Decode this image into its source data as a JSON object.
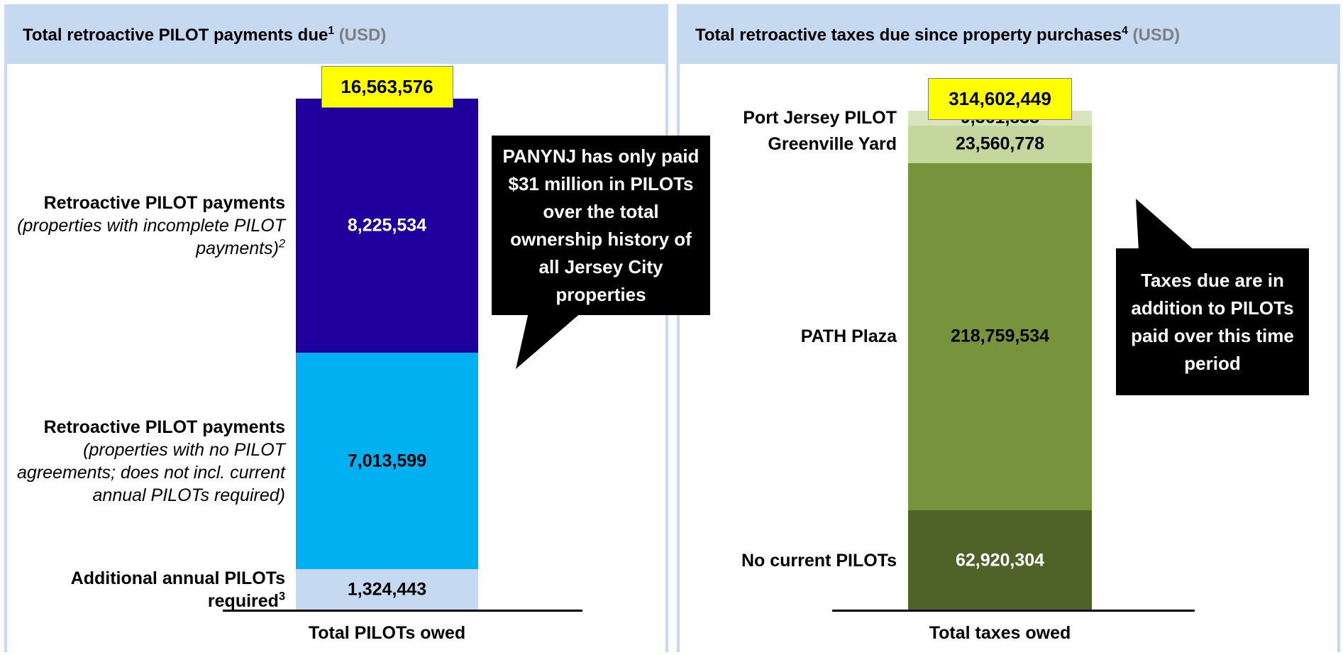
{
  "chart_data": [
    {
      "type": "stacked_bar",
      "title": "Total retroactive PILOT payments due",
      "title_footnote": "1",
      "unit": "(USD)",
      "category": "Total PILOTs owed",
      "total": 16563576,
      "total_label": "16,563,576",
      "callout": "PANYNJ has only paid $31 million in PILOTs  over the total ownership history of all Jersey City properties",
      "series": [
        {
          "name": "Additional annual PILOTs required",
          "footnote": "3",
          "color": "#c5d9f1",
          "label_color": "#000000",
          "values": [
            1324443
          ],
          "value_labels": [
            "1,324,443"
          ]
        },
        {
          "name": "Retroactive PILOT payments",
          "note": "(properties with no PILOT agreements; does not incl. current annual PILOTs required)",
          "color": "#00b0f0",
          "label_color": "#000000",
          "values": [
            7013599
          ],
          "value_labels": [
            "7,013,599"
          ]
        },
        {
          "name": "Retroactive PILOT payments",
          "note": "(properties with incomplete PILOT payments)",
          "note_footnote": "2",
          "color": "#1f009c",
          "label_color": "#ffffff",
          "values": [
            8225534
          ],
          "value_labels": [
            "8,225,534"
          ]
        }
      ]
    },
    {
      "type": "stacked_bar",
      "title": "Total retroactive taxes due since property purchases",
      "title_footnote": "4",
      "unit": "(USD)",
      "category": "Total taxes owed",
      "total": 314602449,
      "total_label": "314,602,449",
      "callout": "Taxes due are in addition to PILOTs paid over this time period",
      "series": [
        {
          "name": "No current PILOTs",
          "color": "#4f6228",
          "label_color": "#ffffff",
          "values": [
            62920304
          ],
          "value_labels": [
            "62,920,304"
          ]
        },
        {
          "name": "PATH Plaza",
          "color": "#77933c",
          "label_color": "#000000",
          "values": [
            218759534
          ],
          "value_labels": [
            "218,759,534"
          ]
        },
        {
          "name": "Greenville Yard",
          "color": "#c3d69b",
          "label_color": "#000000",
          "values": [
            23560778
          ],
          "value_labels": [
            "23,560,778"
          ]
        },
        {
          "name": "Port Jersey PILOT",
          "color": "#d7e4bd",
          "label_color": "#000000",
          "values": [
            9361833
          ],
          "value_labels": [
            "9,361,833"
          ]
        }
      ]
    }
  ]
}
